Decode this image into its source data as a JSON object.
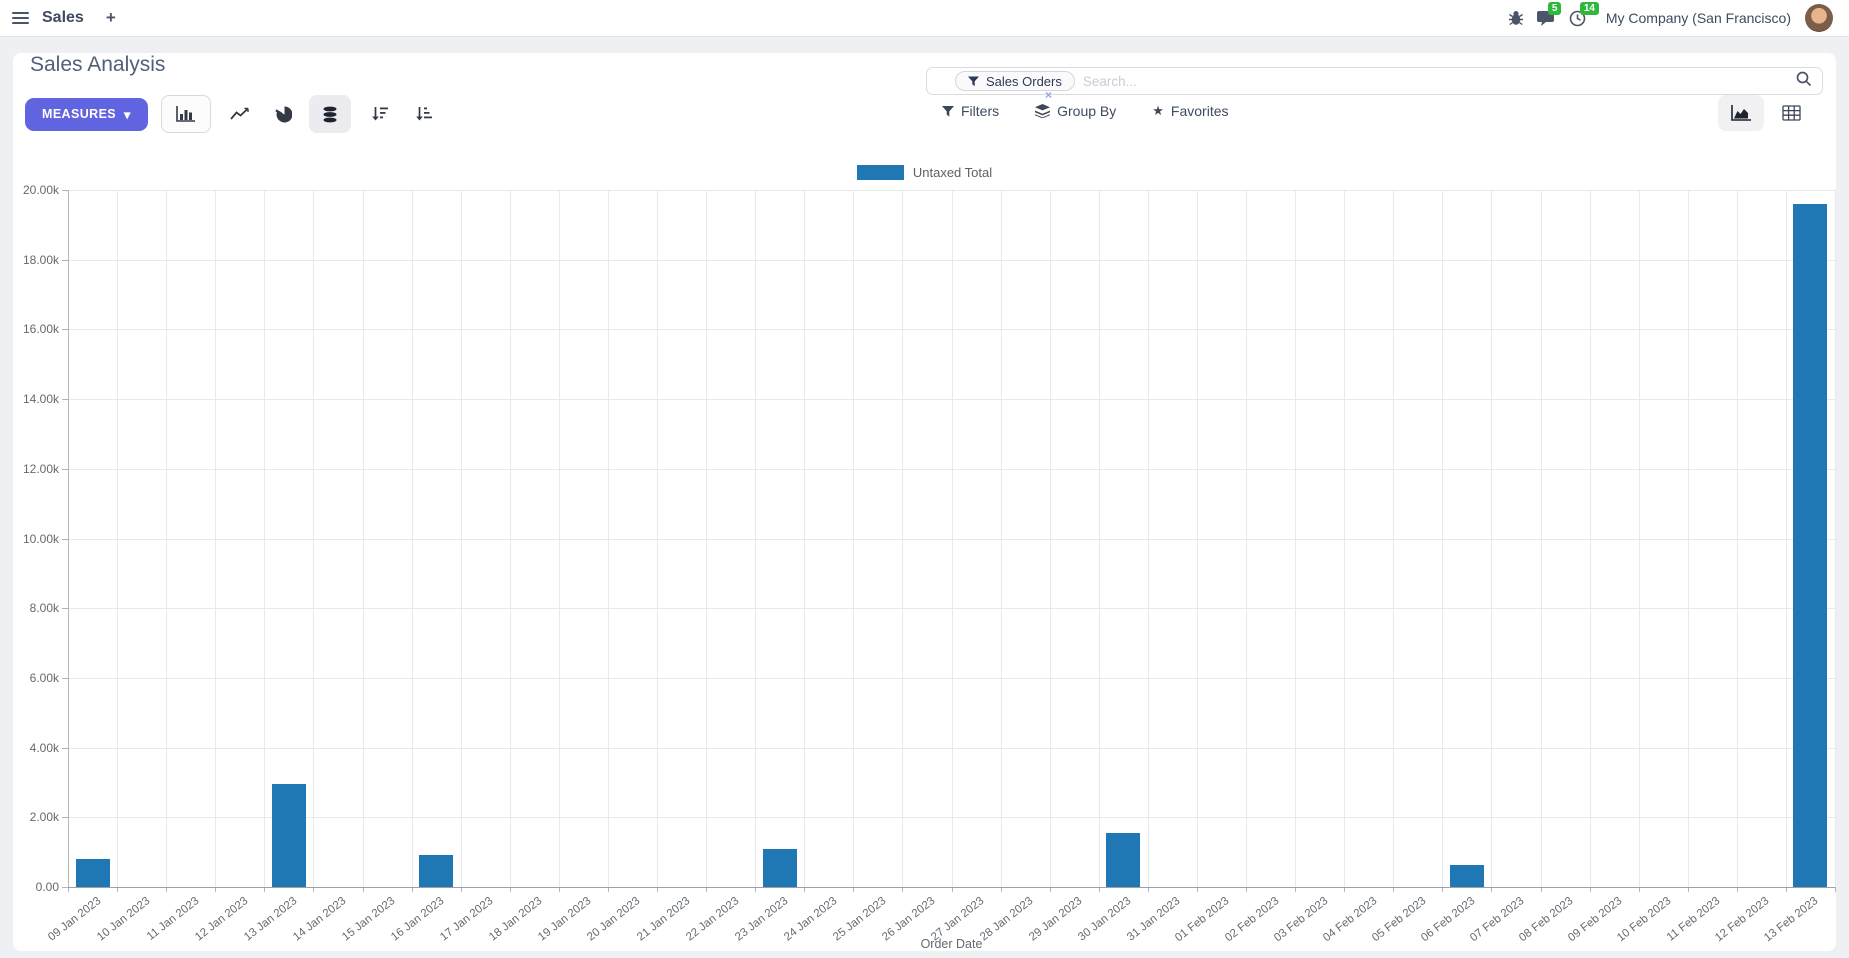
{
  "navbar": {
    "brand": "Sales",
    "messages_count": "5",
    "activities_count": "14",
    "company": "My Company (San Francisco)"
  },
  "control_panel": {
    "title": "Sales Analysis",
    "measures_label": "MEASURES",
    "search": {
      "facet_label": "Sales Orders",
      "placeholder": "Search...",
      "remove_glyph": "×"
    },
    "menus": {
      "filters": "Filters",
      "group_by": "Group By",
      "favorites": "Favorites"
    }
  },
  "icons": {
    "caret_down": "▾",
    "star": "★",
    "plus": "+"
  },
  "colors": {
    "accent": "#6164e0",
    "bar": "#1f77b4",
    "badge": "#2eb83c"
  },
  "chart_data": {
    "type": "bar",
    "title": "",
    "legend_label": "Untaxed Total",
    "xlabel": "Order Date",
    "ylabel": "",
    "ylim": [
      0,
      20000
    ],
    "ytick_step": 2000,
    "ytick_labels": [
      "0.00",
      "2.00k",
      "4.00k",
      "6.00k",
      "8.00k",
      "10.00k",
      "12.00k",
      "14.00k",
      "16.00k",
      "18.00k",
      "20.00k"
    ],
    "grid": true,
    "legend_position": "top",
    "categories": [
      "09 Jan 2023",
      "10 Jan 2023",
      "11 Jan 2023",
      "12 Jan 2023",
      "13 Jan 2023",
      "14 Jan 2023",
      "15 Jan 2023",
      "16 Jan 2023",
      "17 Jan 2023",
      "18 Jan 2023",
      "19 Jan 2023",
      "20 Jan 2023",
      "21 Jan 2023",
      "22 Jan 2023",
      "23 Jan 2023",
      "24 Jan 2023",
      "25 Jan 2023",
      "26 Jan 2023",
      "27 Jan 2023",
      "28 Jan 2023",
      "29 Jan 2023",
      "30 Jan 2023",
      "31 Jan 2023",
      "01 Feb 2023",
      "02 Feb 2023",
      "03 Feb 2023",
      "04 Feb 2023",
      "05 Feb 2023",
      "06 Feb 2023",
      "07 Feb 2023",
      "08 Feb 2023",
      "09 Feb 2023",
      "10 Feb 2023",
      "11 Feb 2023",
      "12 Feb 2023",
      "13 Feb 2023"
    ],
    "values": [
      810,
      0,
      0,
      0,
      2950,
      0,
      0,
      930,
      0,
      0,
      0,
      0,
      0,
      0,
      1100,
      0,
      0,
      0,
      0,
      0,
      0,
      1540,
      0,
      0,
      0,
      0,
      0,
      0,
      640,
      0,
      0,
      0,
      0,
      0,
      0,
      19600
    ]
  }
}
